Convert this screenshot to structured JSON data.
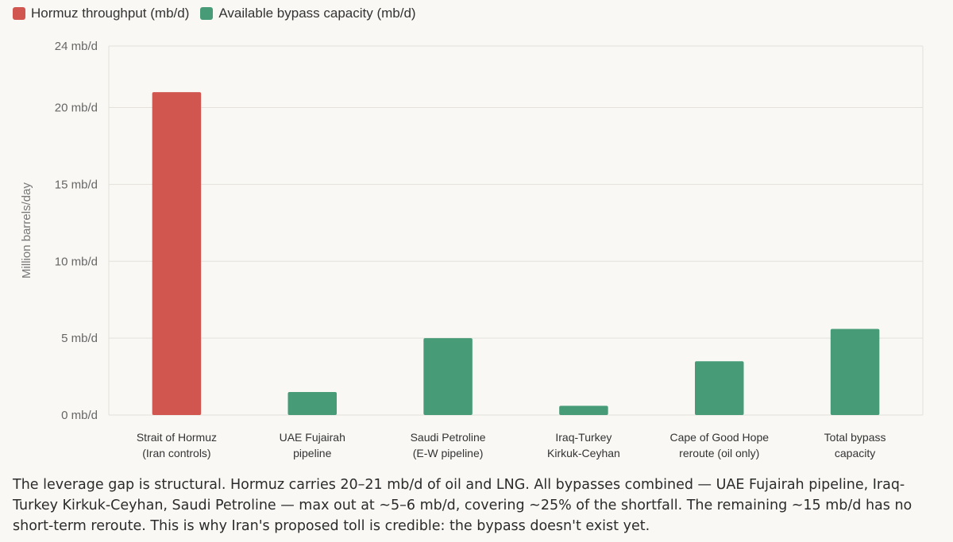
{
  "legend": [
    {
      "label": "Hormuz throughput (mb/d)",
      "color": "#d15650"
    },
    {
      "label": "Available bypass capacity (mb/d)",
      "color": "#479c77"
    }
  ],
  "chart_data": {
    "type": "bar",
    "title": "",
    "xlabel": "",
    "ylabel": "Million barrels/day",
    "ylim": [
      0,
      24
    ],
    "yticks": [
      {
        "value": 0,
        "label": "0 mb/d"
      },
      {
        "value": 5,
        "label": "5 mb/d"
      },
      {
        "value": 10,
        "label": "10 mb/d"
      },
      {
        "value": 15,
        "label": "15 mb/d"
      },
      {
        "value": 20,
        "label": "20 mb/d"
      },
      {
        "value": 24,
        "label": "24 mb/d"
      }
    ],
    "categories": [
      [
        "Strait of Hormuz",
        "(Iran controls)"
      ],
      [
        "UAE Fujairah",
        "pipeline"
      ],
      [
        "Saudi Petroline",
        "(E-W pipeline)"
      ],
      [
        "Iraq-Turkey",
        "Kirkuk-Ceyhan"
      ],
      [
        "Cape of Good Hope",
        "reroute (oil only)"
      ],
      [
        "Total bypass",
        "capacity"
      ]
    ],
    "series": [
      {
        "name": "Hormuz throughput (mb/d)",
        "color": "#d15650",
        "values": [
          21,
          null,
          null,
          null,
          null,
          null
        ]
      },
      {
        "name": "Available bypass capacity (mb/d)",
        "color": "#479c77",
        "values": [
          null,
          1.5,
          5,
          0.6,
          3.5,
          5.6
        ]
      }
    ],
    "grid": true,
    "legend_position": "top-left"
  },
  "caption": "The leverage gap is structural. Hormuz carries 20–21 mb/d of oil and LNG. All bypasses combined — UAE Fujairah pipeline, Iraq-Turkey Kirkuk-Ceyhan, Saudi Petroline — max out at ~5–6 mb/d, covering ~25% of the shortfall. The remaining ~15 mb/d has no short-term reroute. This is why Iran's proposed toll is credible: the bypass doesn't exist yet."
}
